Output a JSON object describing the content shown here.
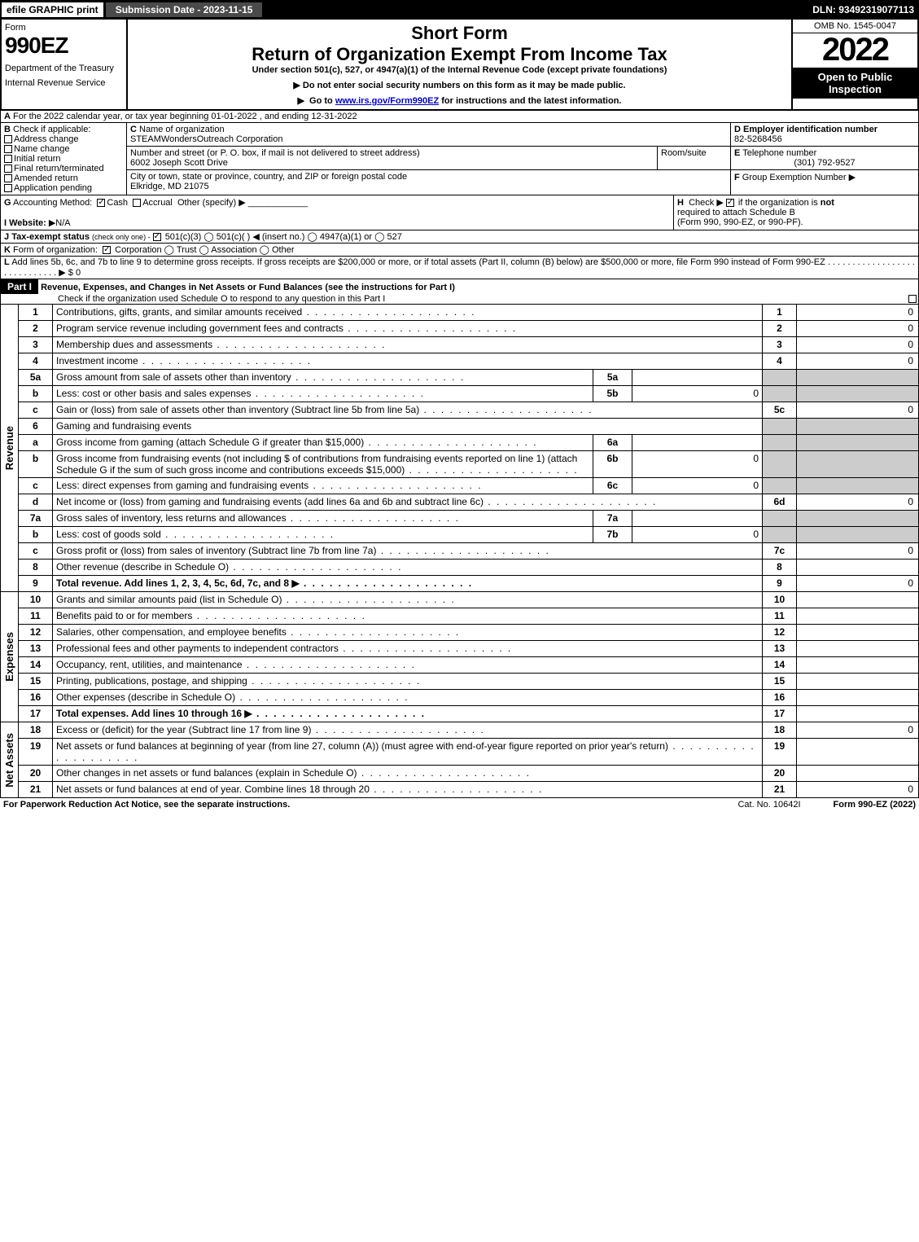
{
  "topbar": {
    "efile": "efile GRAPHIC print",
    "submission": "Submission Date - 2023-11-15",
    "dln": "DLN: 93492319077113"
  },
  "header": {
    "form_label": "Form",
    "form_number": "990EZ",
    "dept1": "Department of the Treasury",
    "dept2": "Internal Revenue Service",
    "title1": "Short Form",
    "title2": "Return of Organization Exempt From Income Tax",
    "subtitle": "Under section 501(c), 527, or 4947(a)(1) of the Internal Revenue Code (except private foundations)",
    "warn1": "Do not enter social security numbers on this form as it may be made public.",
    "warn2_pre": "Go to ",
    "warn2_link": "www.irs.gov/Form990EZ",
    "warn2_post": " for instructions and the latest information.",
    "omb": "OMB No. 1545-0047",
    "year": "2022",
    "open": "Open to Public Inspection"
  },
  "A": {
    "text": "For the 2022 calendar year, or tax year beginning 01-01-2022 , and ending 12-31-2022"
  },
  "B": {
    "label": "Check if applicable:",
    "opts": [
      "Address change",
      "Name change",
      "Initial return",
      "Final return/terminated",
      "Amended return",
      "Application pending"
    ]
  },
  "C": {
    "label": "Name of organization",
    "name": "STEAMWondersOutreach Corporation",
    "street_label": "Number and street (or P. O. box, if mail is not delivered to street address)",
    "street": "6002 Joseph Scott Drive",
    "room_label": "Room/suite",
    "city_label": "City or town, state or province, country, and ZIP or foreign postal code",
    "city": "Elkridge, MD  21075"
  },
  "D": {
    "label": "Employer identification number",
    "value": "82-5268456"
  },
  "E": {
    "label": "Telephone number",
    "value": "(301) 792-9527"
  },
  "F": {
    "label": "Group Exemption Number"
  },
  "G": {
    "label": "Accounting Method:",
    "cash": "Cash",
    "accrual": "Accrual",
    "other": "Other (specify)"
  },
  "H": {
    "text1": "Check ▶",
    "text2": "if the organization is ",
    "not": "not",
    "text3": "required to attach Schedule B",
    "text4": "(Form 990, 990-EZ, or 990-PF)."
  },
  "I": {
    "label": "Website:",
    "value": "N/A"
  },
  "J": {
    "label": "Tax-exempt status",
    "sub": "(check only one) -",
    "opts": "501(c)(3)  ◯ 501(c)(  ) ◀ (insert no.)  ◯ 4947(a)(1) or  ◯ 527"
  },
  "K": {
    "label": "Form of organization:",
    "opts": "Corporation  ◯ Trust  ◯ Association  ◯ Other"
  },
  "L": {
    "text": "Add lines 5b, 6c, and 7b to line 9 to determine gross receipts. If gross receipts are $200,000 or more, or if total assets (Part II, column (B) below) are $500,000 or more, file Form 990 instead of Form 990-EZ",
    "amount": "$ 0"
  },
  "PartI": {
    "title": "Part I",
    "heading": "Revenue, Expenses, and Changes in Net Assets or Fund Balances (see the instructions for Part I)",
    "check": "Check if the organization used Schedule O to respond to any question in this Part I"
  },
  "vlabels": {
    "rev": "Revenue",
    "exp": "Expenses",
    "na": "Net Assets"
  },
  "lines": {
    "1": {
      "d": "Contributions, gifts, grants, and similar amounts received",
      "v": "0"
    },
    "2": {
      "d": "Program service revenue including government fees and contracts",
      "v": "0"
    },
    "3": {
      "d": "Membership dues and assessments",
      "v": "0"
    },
    "4": {
      "d": "Investment income",
      "v": "0"
    },
    "5a": {
      "d": "Gross amount from sale of assets other than inventory",
      "sv": ""
    },
    "5b": {
      "d": "Less: cost or other basis and sales expenses",
      "sv": "0"
    },
    "5c": {
      "d": "Gain or (loss) from sale of assets other than inventory (Subtract line 5b from line 5a)",
      "v": "0"
    },
    "6": {
      "d": "Gaming and fundraising events"
    },
    "6a": {
      "d": "Gross income from gaming (attach Schedule G if greater than $15,000)",
      "sv": ""
    },
    "6b": {
      "d": "Gross income from fundraising events (not including $                    of contributions from fundraising events reported on line 1) (attach Schedule G if the sum of such gross income and contributions exceeds $15,000)",
      "sv": "0"
    },
    "6c": {
      "d": "Less: direct expenses from gaming and fundraising events",
      "sv": "0"
    },
    "6d": {
      "d": "Net income or (loss) from gaming and fundraising events (add lines 6a and 6b and subtract line 6c)",
      "v": "0"
    },
    "7a": {
      "d": "Gross sales of inventory, less returns and allowances",
      "sv": ""
    },
    "7b": {
      "d": "Less: cost of goods sold",
      "sv": "0"
    },
    "7c": {
      "d": "Gross profit or (loss) from sales of inventory (Subtract line 7b from line 7a)",
      "v": "0"
    },
    "8": {
      "d": "Other revenue (describe in Schedule O)",
      "v": ""
    },
    "9": {
      "d": "Total revenue. Add lines 1, 2, 3, 4, 5c, 6d, 7c, and 8",
      "v": "0",
      "bold": true
    },
    "10": {
      "d": "Grants and similar amounts paid (list in Schedule O)",
      "v": ""
    },
    "11": {
      "d": "Benefits paid to or for members",
      "v": ""
    },
    "12": {
      "d": "Salaries, other compensation, and employee benefits",
      "v": ""
    },
    "13": {
      "d": "Professional fees and other payments to independent contractors",
      "v": ""
    },
    "14": {
      "d": "Occupancy, rent, utilities, and maintenance",
      "v": ""
    },
    "15": {
      "d": "Printing, publications, postage, and shipping",
      "v": ""
    },
    "16": {
      "d": "Other expenses (describe in Schedule O)",
      "v": ""
    },
    "17": {
      "d": "Total expenses. Add lines 10 through 16",
      "v": "",
      "bold": true
    },
    "18": {
      "d": "Excess or (deficit) for the year (Subtract line 17 from line 9)",
      "v": "0"
    },
    "19": {
      "d": "Net assets or fund balances at beginning of year (from line 27, column (A)) (must agree with end-of-year figure reported on prior year's return)",
      "v": ""
    },
    "20": {
      "d": "Other changes in net assets or fund balances (explain in Schedule O)",
      "v": ""
    },
    "21": {
      "d": "Net assets or fund balances at end of year. Combine lines 18 through 20",
      "v": "0"
    }
  },
  "footer": {
    "l": "For Paperwork Reduction Act Notice, see the separate instructions.",
    "m": "Cat. No. 10642I",
    "r": "Form 990-EZ (2022)"
  }
}
